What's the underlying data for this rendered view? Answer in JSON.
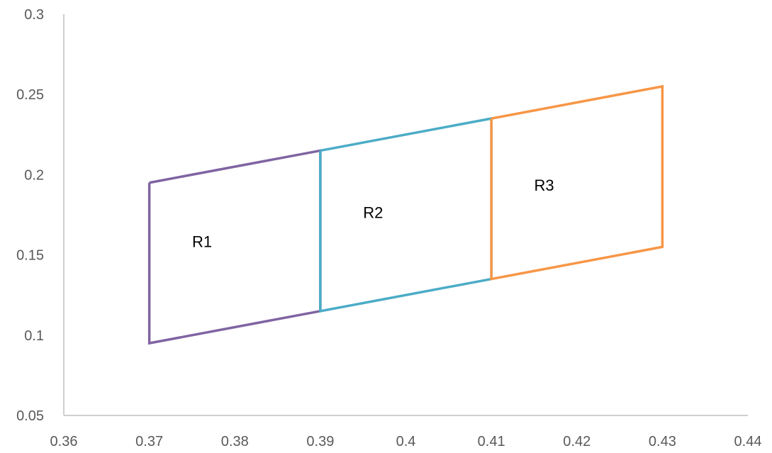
{
  "chart_data": {
    "type": "line",
    "title": "",
    "xlabel": "",
    "ylabel": "",
    "xlim": [
      0.36,
      0.44
    ],
    "ylim": [
      0.05,
      0.3
    ],
    "x_ticks": [
      "0.36",
      "0.37",
      "0.38",
      "0.39",
      "0.4",
      "0.41",
      "0.42",
      "0.43",
      "0.44"
    ],
    "x_tick_values": [
      0.36,
      0.37,
      0.38,
      0.39,
      0.4,
      0.41,
      0.42,
      0.43,
      0.44
    ],
    "y_ticks": [
      "0.05",
      "0.1",
      "0.15",
      "0.2",
      "0.25",
      "0.3"
    ],
    "y_tick_values": [
      0.05,
      0.1,
      0.15,
      0.2,
      0.25,
      0.3
    ],
    "grid": false,
    "legend": "none",
    "series": [
      {
        "label": "R1",
        "color": "#8064a2",
        "points": [
          [
            0.37,
            0.195
          ],
          [
            0.39,
            0.215
          ],
          [
            0.39,
            0.115
          ],
          [
            0.37,
            0.095
          ],
          [
            0.37,
            0.195
          ]
        ],
        "label_at": [
          0.375,
          0.155
        ]
      },
      {
        "label": "R2",
        "color": "#4bacc6",
        "points": [
          [
            0.39,
            0.215
          ],
          [
            0.41,
            0.235
          ],
          [
            0.41,
            0.135
          ],
          [
            0.39,
            0.115
          ],
          [
            0.39,
            0.215
          ]
        ],
        "label_at": [
          0.395,
          0.173
        ]
      },
      {
        "label": "R3",
        "color": "#f79646",
        "points": [
          [
            0.41,
            0.235
          ],
          [
            0.43,
            0.255
          ],
          [
            0.43,
            0.155
          ],
          [
            0.41,
            0.135
          ],
          [
            0.41,
            0.235
          ]
        ],
        "label_at": [
          0.415,
          0.19
        ]
      }
    ]
  }
}
